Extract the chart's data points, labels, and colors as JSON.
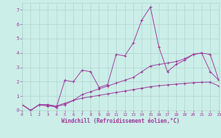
{
  "xlabel": "Windchill (Refroidissement éolien,°C)",
  "background_color": "#cceee8",
  "grid_color": "#aad4cc",
  "line_color": "#993399",
  "x": [
    0,
    1,
    2,
    3,
    4,
    5,
    6,
    7,
    8,
    9,
    10,
    11,
    12,
    13,
    14,
    15,
    16,
    17,
    18,
    19,
    20,
    21,
    22,
    23
  ],
  "line1": [
    0.4,
    0.0,
    0.4,
    0.4,
    0.2,
    2.1,
    2.0,
    2.8,
    2.7,
    1.6,
    1.8,
    3.9,
    3.8,
    4.7,
    6.3,
    7.2,
    4.4,
    2.7,
    3.2,
    3.5,
    3.9,
    4.0,
    2.7,
    2.1
  ],
  "line2": [
    0.4,
    0.0,
    0.4,
    0.4,
    0.3,
    0.4,
    0.7,
    1.1,
    1.3,
    1.5,
    1.7,
    1.9,
    2.1,
    2.3,
    2.7,
    3.1,
    3.2,
    3.3,
    3.4,
    3.6,
    3.9,
    4.0,
    3.9,
    2.1
  ],
  "line3": [
    0.4,
    0.0,
    0.4,
    0.3,
    0.3,
    0.5,
    0.7,
    0.85,
    0.95,
    1.05,
    1.15,
    1.25,
    1.35,
    1.45,
    1.55,
    1.65,
    1.72,
    1.78,
    1.83,
    1.88,
    1.93,
    1.96,
    1.97,
    1.7
  ],
  "xlim": [
    0,
    23
  ],
  "ylim": [
    0,
    7.5
  ],
  "xticks": [
    0,
    1,
    2,
    3,
    4,
    5,
    6,
    7,
    8,
    9,
    10,
    11,
    12,
    13,
    14,
    15,
    16,
    17,
    18,
    19,
    20,
    21,
    22,
    23
  ],
  "yticks": [
    0,
    1,
    2,
    3,
    4,
    5,
    6,
    7
  ]
}
